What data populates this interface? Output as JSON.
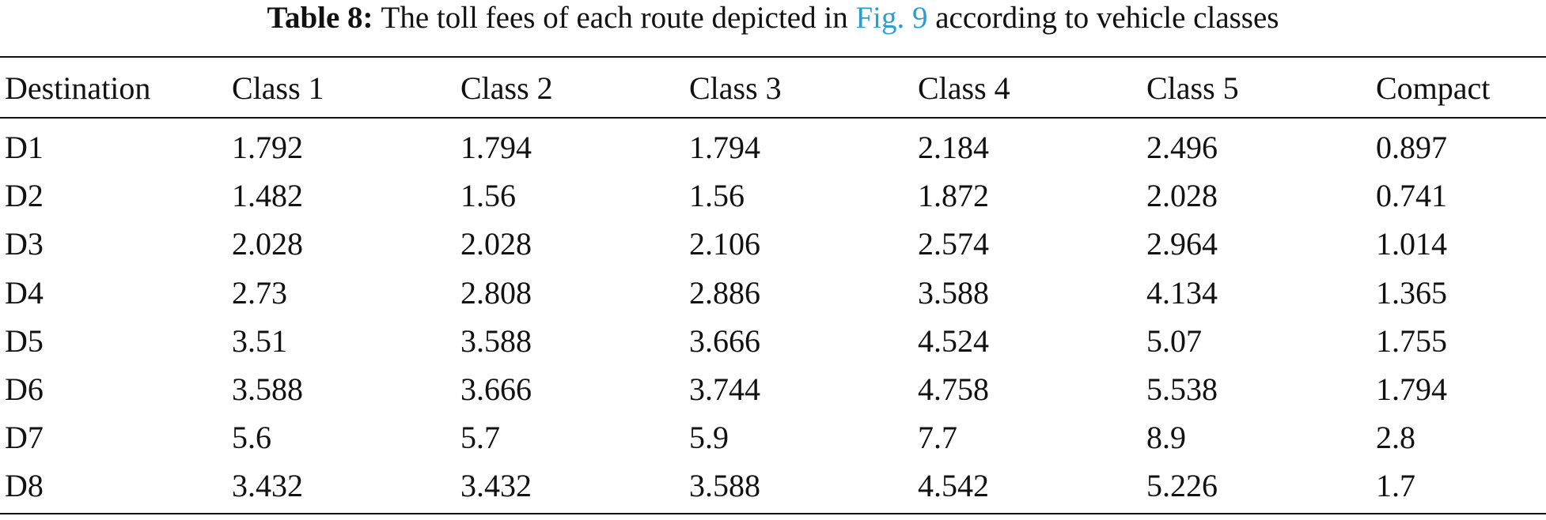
{
  "caption": {
    "label": "Table 8:",
    "text_before": "The toll fees of each route depicted in",
    "link": "Fig. 9",
    "text_after": "according to vehicle classes"
  },
  "table": {
    "header": [
      "Destination",
      "Class 1",
      "Class 2",
      "Class 3",
      "Class 4",
      "Class 5",
      "Compact"
    ],
    "rows": [
      [
        "D1",
        "1.792",
        "1.794",
        "1.794",
        "2.184",
        "2.496",
        "0.897"
      ],
      [
        "D2",
        "1.482",
        "1.56",
        "1.56",
        "1.872",
        "2.028",
        "0.741"
      ],
      [
        "D3",
        "2.028",
        "2.028",
        "2.106",
        "2.574",
        "2.964",
        "1.014"
      ],
      [
        "D4",
        "2.73",
        "2.808",
        "2.886",
        "3.588",
        "4.134",
        "1.365"
      ],
      [
        "D5",
        "3.51",
        "3.588",
        "3.666",
        "4.524",
        "5.07",
        "1.755"
      ],
      [
        "D6",
        "3.588",
        "3.666",
        "3.744",
        "4.758",
        "5.538",
        "1.794"
      ],
      [
        "D7",
        "5.6",
        "5.7",
        "5.9",
        "7.7",
        "8.9",
        "2.8"
      ],
      [
        "D8",
        "3.432",
        "3.432",
        "3.588",
        "4.542",
        "5.226",
        "1.7"
      ]
    ]
  }
}
